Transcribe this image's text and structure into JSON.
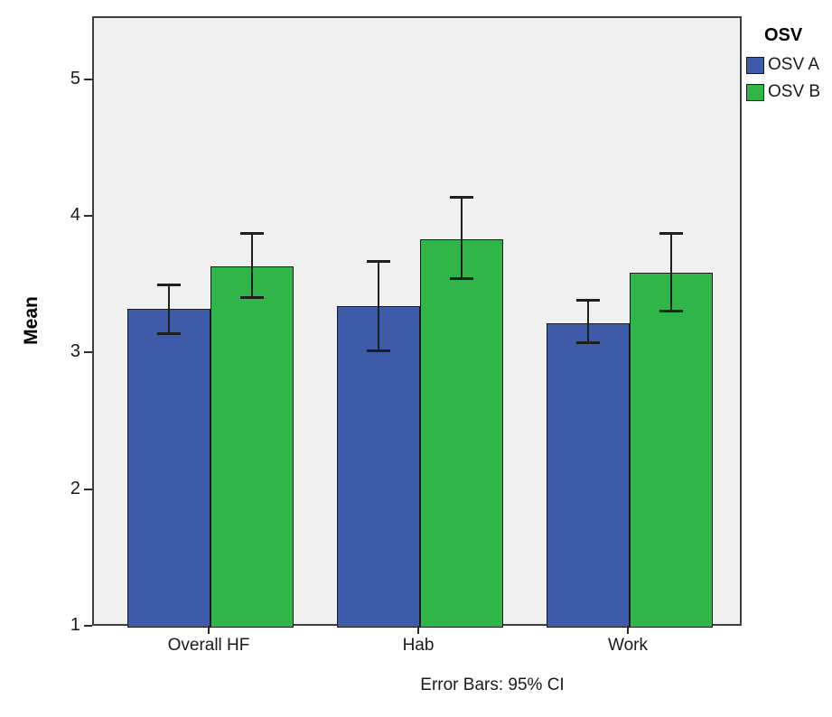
{
  "chart_data": {
    "type": "bar",
    "title": "",
    "xlabel": "",
    "ylabel": "Mean",
    "footnote": "Error Bars: 95% CI",
    "legend_title": "OSV",
    "legend_position": "top-right-outside",
    "categories": [
      "Overall HF",
      "Hab",
      "Work"
    ],
    "series": [
      {
        "name": "OSV A",
        "color": "#3e5ba9",
        "values": [
          3.33,
          3.35,
          3.23
        ],
        "ci_low": [
          3.15,
          3.02,
          3.08
        ],
        "ci_high": [
          3.51,
          3.68,
          3.4
        ]
      },
      {
        "name": "OSV B",
        "color": "#2fb54a",
        "values": [
          3.64,
          3.84,
          3.6
        ],
        "ci_low": [
          3.41,
          3.55,
          3.31
        ],
        "ci_high": [
          3.89,
          4.15,
          3.89
        ]
      }
    ],
    "yticks": [
      1,
      2,
      3,
      4,
      5
    ],
    "ylim": [
      1,
      5.46
    ],
    "grid": "off",
    "plot_background": "#f0f0f0",
    "error_bar_note": "95% CI"
  }
}
